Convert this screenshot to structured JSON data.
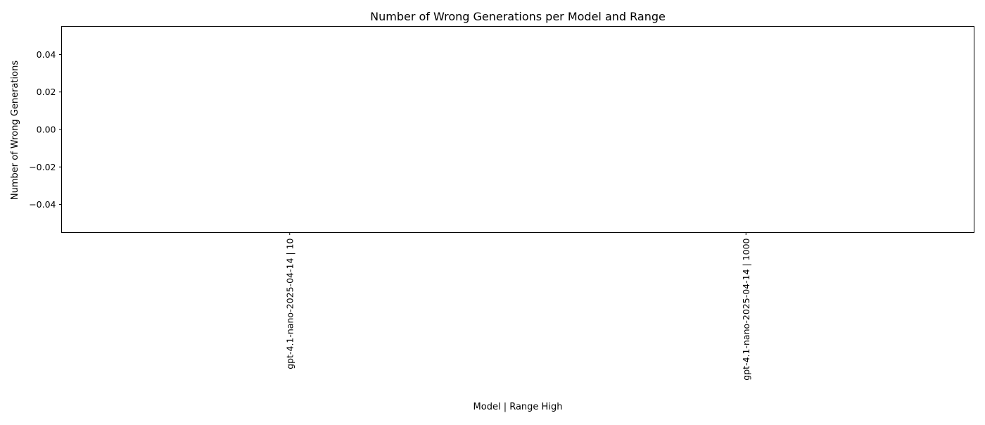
{
  "chart_data": {
    "type": "bar",
    "title": "Number of Wrong Generations per Model and Range",
    "xlabel": "Model | Range High",
    "ylabel": "Number of Wrong Generations",
    "categories": [
      "gpt-4.1-nano-2025-04-14 | 10",
      "gpt-4.1-nano-2025-04-14 | 1000"
    ],
    "values": [
      0,
      0
    ],
    "ylim": [
      -0.055,
      0.055
    ],
    "yticks": [
      0.04,
      0.02,
      0.0,
      -0.02,
      -0.04
    ],
    "ytick_labels": [
      "0.04",
      "0.02",
      "0.00",
      "−0.02",
      "−0.04"
    ],
    "grid": false,
    "legend": "none",
    "bar_color": "#1f77b4"
  }
}
